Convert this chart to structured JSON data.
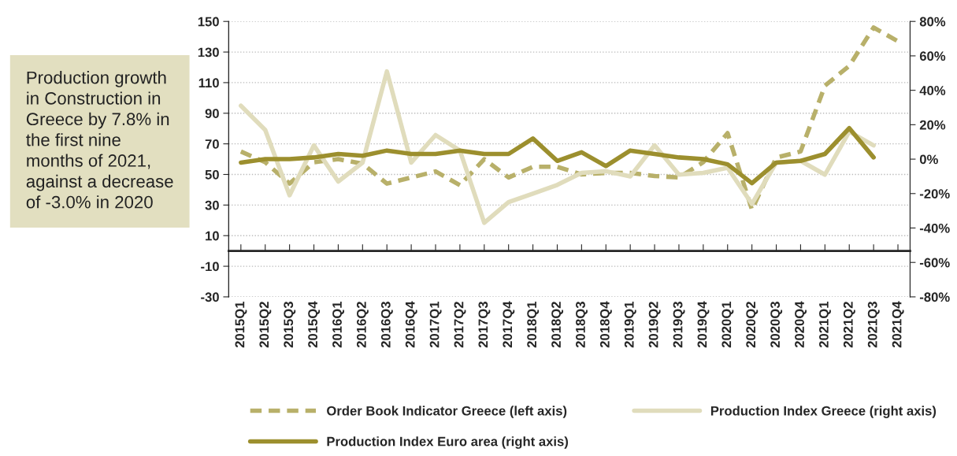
{
  "chart_data": {
    "type": "line",
    "categories": [
      "2015Q1",
      "2015Q2",
      "2015Q3",
      "2015Q4",
      "2016Q1",
      "2016Q2",
      "2016Q3",
      "2016Q4",
      "2017Q1",
      "2017Q2",
      "2017Q3",
      "2017Q4",
      "2018Q1",
      "2018Q2",
      "2018Q3",
      "2018Q4",
      "2019Q1",
      "2019Q2",
      "2019Q3",
      "2019Q4",
      "2020Q1",
      "2020Q2",
      "2020Q3",
      "2020Q4",
      "2021Q1",
      "2021Q2",
      "2021Q3",
      "2021Q4"
    ],
    "series": [
      {
        "name": "Order Book Indicator Greece (left axis)",
        "color": "#b8b06a",
        "line_style": "dashed",
        "values": [
          65,
          58,
          44,
          58,
          60,
          57,
          44,
          48,
          52,
          43,
          60,
          48,
          55,
          55,
          50,
          51,
          51,
          49,
          48,
          58,
          77,
          27,
          61,
          65,
          108,
          121,
          146,
          137
        ]
      },
      {
        "name": "Production Index Greece (right axis)",
        "color": "#e0dcbc",
        "line_style": "solid",
        "axis": "y2",
        "values": [
          31,
          17,
          -21,
          8,
          -13,
          -2,
          51,
          -2,
          14,
          5,
          -37,
          -25,
          -20,
          -15,
          -8,
          -7,
          -10,
          8,
          -9,
          -8,
          -5,
          -26,
          -2,
          -1,
          -9,
          16,
          8,
          null
        ]
      },
      {
        "name": "Production Index Euro area (right axis)",
        "color": "#9c8f2e",
        "line_style": "solid",
        "axis": "y2",
        "values": [
          -2,
          0,
          0,
          1,
          3,
          2,
          5,
          3,
          3,
          5,
          3,
          3,
          12,
          -1,
          4,
          -4,
          5,
          3,
          1,
          0,
          -3,
          -14,
          -2,
          -1,
          3,
          18,
          1,
          null
        ]
      }
    ],
    "ylim": [
      -30,
      150
    ],
    "yticks": [
      -30,
      -10,
      10,
      30,
      50,
      70,
      90,
      110,
      130,
      150
    ],
    "y2lim": [
      -80,
      80
    ],
    "y2ticks": [
      {
        "value": -80,
        "label": "-80%"
      },
      {
        "value": -60,
        "label": "-60%"
      },
      {
        "value": -40,
        "label": "-40%"
      },
      {
        "value": -20,
        "label": "-20%"
      },
      {
        "value": 0,
        "label": "0%"
      },
      {
        "value": 20,
        "label": "20%"
      },
      {
        "value": 40,
        "label": "40%"
      },
      {
        "value": 60,
        "label": "60%"
      },
      {
        "value": 80,
        "label": "80%"
      }
    ],
    "grid": "y",
    "legend": "bottom",
    "annotations": [
      "Production growth\nin Construction in\nGreece by 7.8% in\nthe first nine\nmonths of 2021,\nagainst a decrease\nof -3.0% in 2020"
    ]
  }
}
